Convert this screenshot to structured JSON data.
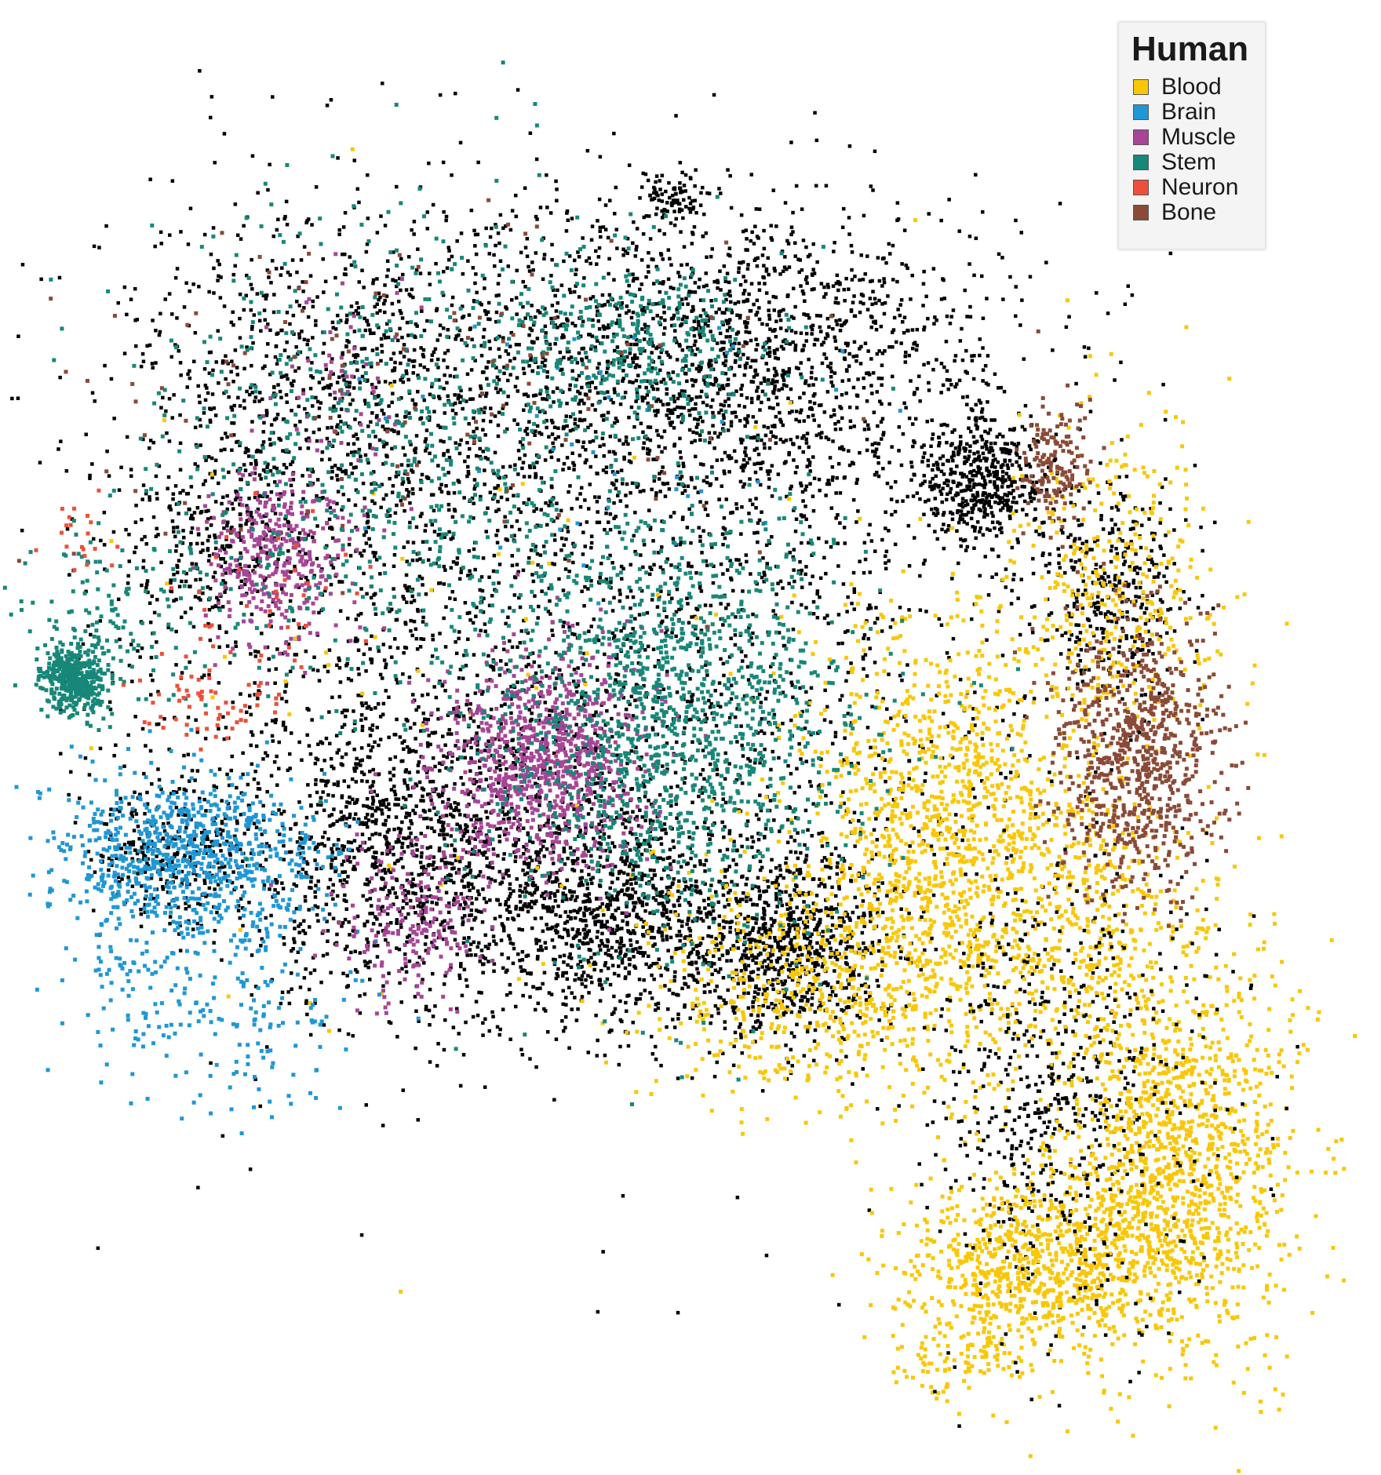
{
  "chart_data": {
    "type": "scatter",
    "title": "",
    "xlabel": "",
    "ylabel": "",
    "axes_visible": false,
    "grid": false,
    "legend": {
      "title": "Human",
      "placement": "top-right"
    },
    "background_series": {
      "color": "#000000",
      "in_legend": false
    },
    "series": [
      {
        "name": "Blood",
        "color": "#F9C708",
        "clusters": [
          {
            "x": 0.88,
            "y": 0.78,
            "sx": 0.045,
            "sy": 0.075,
            "n": 1400
          },
          {
            "x": 0.77,
            "y": 0.86,
            "sx": 0.05,
            "sy": 0.03,
            "n": 800
          },
          {
            "x": 0.7,
            "y": 0.52,
            "sx": 0.05,
            "sy": 0.07,
            "n": 1000
          },
          {
            "x": 0.62,
            "y": 0.65,
            "sx": 0.07,
            "sy": 0.05,
            "n": 700
          },
          {
            "x": 0.8,
            "y": 0.6,
            "sx": 0.05,
            "sy": 0.06,
            "n": 500
          },
          {
            "x": 0.83,
            "y": 0.36,
            "sx": 0.04,
            "sy": 0.07,
            "n": 400
          },
          {
            "x": 0.72,
            "y": 0.93,
            "sx": 0.03,
            "sy": 0.015,
            "n": 100
          },
          {
            "x": 0.45,
            "y": 0.45,
            "sx": 0.2,
            "sy": 0.18,
            "n": 80
          }
        ]
      },
      {
        "name": "Brain",
        "color": "#1F97D4",
        "clusters": [
          {
            "x": 0.13,
            "y": 0.55,
            "sx": 0.05,
            "sy": 0.03,
            "n": 800
          },
          {
            "x": 0.16,
            "y": 0.67,
            "sx": 0.05,
            "sy": 0.04,
            "n": 200
          },
          {
            "x": 0.08,
            "y": 0.62,
            "sx": 0.02,
            "sy": 0.03,
            "n": 60
          },
          {
            "x": 0.45,
            "y": 0.25,
            "sx": 0.1,
            "sy": 0.08,
            "n": 40
          }
        ]
      },
      {
        "name": "Muscle",
        "color": "#A74596",
        "clusters": [
          {
            "x": 0.2,
            "y": 0.33,
            "sx": 0.025,
            "sy": 0.03,
            "n": 350
          },
          {
            "x": 0.4,
            "y": 0.48,
            "sx": 0.04,
            "sy": 0.04,
            "n": 900
          },
          {
            "x": 0.3,
            "y": 0.6,
            "sx": 0.03,
            "sy": 0.03,
            "n": 200
          },
          {
            "x": 0.25,
            "y": 0.2,
            "sx": 0.03,
            "sy": 0.04,
            "n": 60
          }
        ]
      },
      {
        "name": "Stem",
        "color": "#178779",
        "clusters": [
          {
            "x": 0.045,
            "y": 0.42,
            "sx": 0.012,
            "sy": 0.013,
            "n": 450
          },
          {
            "x": 0.5,
            "y": 0.45,
            "sx": 0.07,
            "sy": 0.08,
            "n": 1400
          },
          {
            "x": 0.47,
            "y": 0.17,
            "sx": 0.05,
            "sy": 0.03,
            "n": 300
          },
          {
            "x": 0.3,
            "y": 0.25,
            "sx": 0.1,
            "sy": 0.09,
            "n": 700
          },
          {
            "x": 0.08,
            "y": 0.37,
            "sx": 0.04,
            "sy": 0.03,
            "n": 120
          }
        ]
      },
      {
        "name": "Neuron",
        "color": "#EE4F3A",
        "clusters": [
          {
            "x": 0.14,
            "y": 0.44,
            "sx": 0.025,
            "sy": 0.015,
            "n": 60
          },
          {
            "x": 0.05,
            "y": 0.32,
            "sx": 0.015,
            "sy": 0.02,
            "n": 20
          },
          {
            "x": 0.2,
            "y": 0.36,
            "sx": 0.04,
            "sy": 0.04,
            "n": 40
          }
        ]
      },
      {
        "name": "Bone",
        "color": "#8A4A37",
        "clusters": [
          {
            "x": 0.85,
            "y": 0.48,
            "sx": 0.03,
            "sy": 0.05,
            "n": 800
          },
          {
            "x": 0.79,
            "y": 0.26,
            "sx": 0.015,
            "sy": 0.02,
            "n": 150
          },
          {
            "x": 0.3,
            "y": 0.2,
            "sx": 0.15,
            "sy": 0.06,
            "n": 120
          }
        ]
      }
    ]
  },
  "legend": {
    "title": "Human",
    "items": [
      {
        "label": "Blood",
        "color": "#F9C708"
      },
      {
        "label": "Brain",
        "color": "#1F97D4"
      },
      {
        "label": "Muscle",
        "color": "#A74596"
      },
      {
        "label": "Stem",
        "color": "#178779"
      },
      {
        "label": "Neuron",
        "color": "#EE4F3A"
      },
      {
        "label": "Bone",
        "color": "#8A4A37"
      }
    ]
  }
}
